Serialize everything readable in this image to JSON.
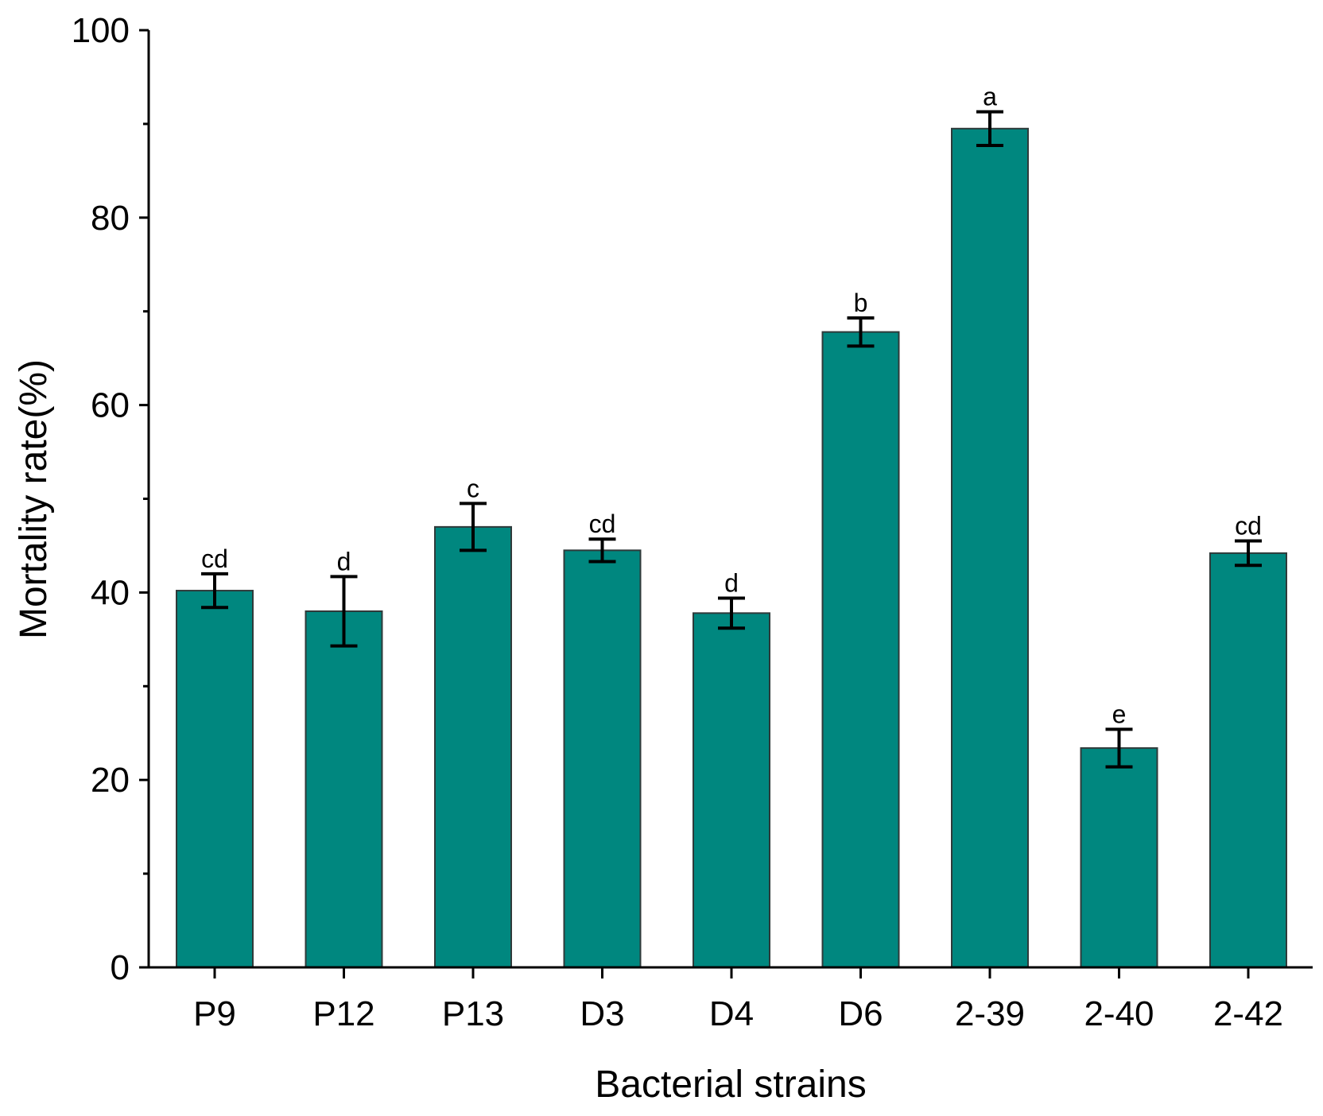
{
  "chart_data": {
    "type": "bar",
    "title": "",
    "xlabel": "Bacterial strains",
    "ylabel": "Mortality rate(%)",
    "ylim": [
      0,
      100
    ],
    "yticks": [
      0,
      20,
      40,
      60,
      80,
      100
    ],
    "bar_color": "#00877f",
    "categories": [
      "P9",
      "P12",
      "P13",
      "D3",
      "D4",
      "D6",
      "2-39",
      "2-40",
      "2-42"
    ],
    "values": [
      40.2,
      38.0,
      47.0,
      44.5,
      37.8,
      67.8,
      89.5,
      23.4,
      44.2
    ],
    "errors": [
      1.8,
      3.7,
      2.5,
      1.2,
      1.6,
      1.5,
      1.8,
      2.0,
      1.3
    ],
    "significance": [
      "cd",
      "d",
      "c",
      "cd",
      "d",
      "b",
      "a",
      "e",
      "cd"
    ]
  }
}
